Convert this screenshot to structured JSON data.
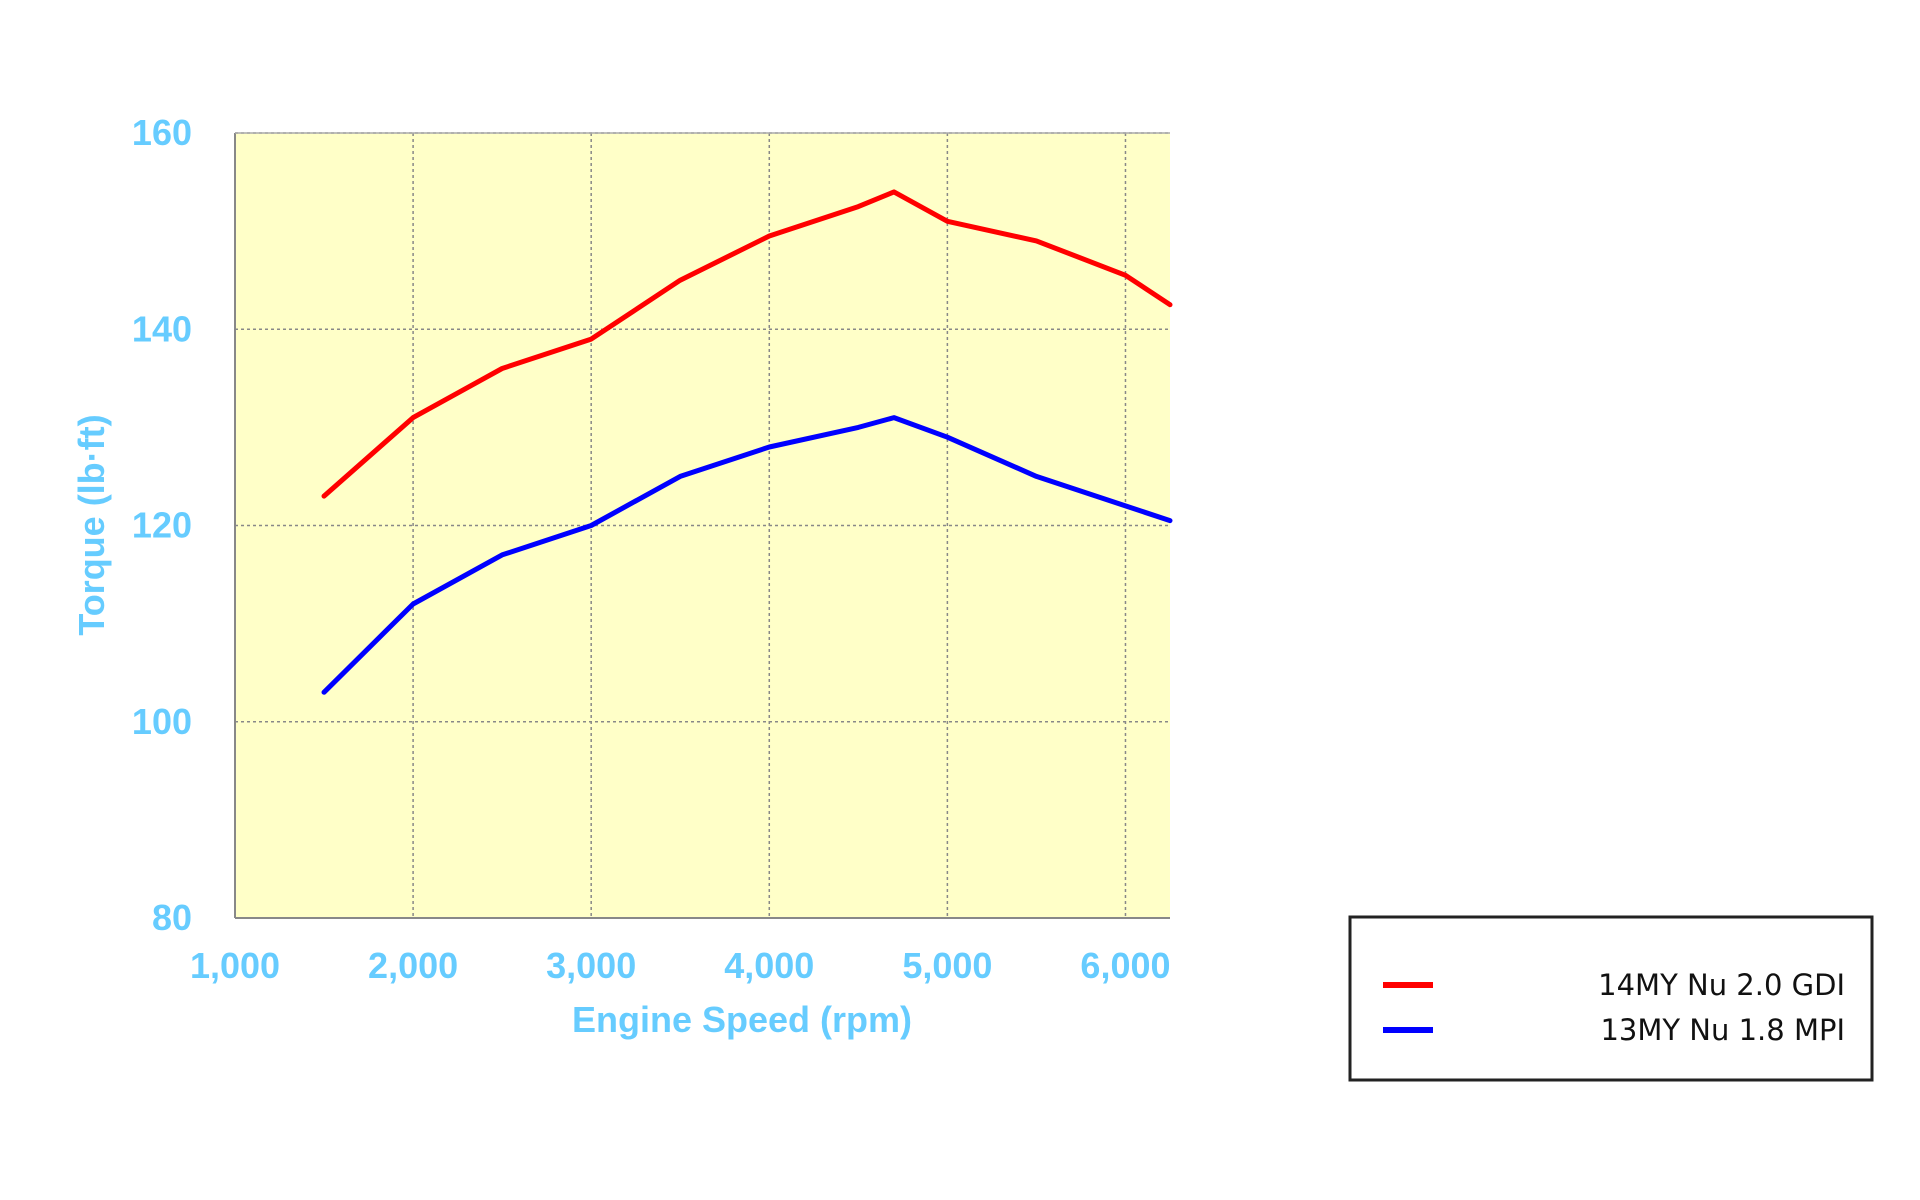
{
  "chart_data": {
    "type": "line",
    "title": "",
    "xlabel": "Engine Speed (rpm)",
    "ylabel": "Torque (lb·ft)",
    "xlim": [
      1000,
      6250
    ],
    "ylim": [
      80,
      160
    ],
    "x_ticks": [
      1000,
      2000,
      3000,
      4000,
      5000,
      6000
    ],
    "x_tick_labels": [
      "1,000",
      "2,000",
      "3,000",
      "4,000",
      "5,000",
      "6,000"
    ],
    "y_ticks": [
      80,
      100,
      120,
      140,
      160
    ],
    "y_tick_labels": [
      "80",
      "100",
      "120",
      "140",
      "160"
    ],
    "grid": true,
    "plot_background": "#ffffc8",
    "legend_position": "bottom-right",
    "series": [
      {
        "name": "14MY Nu 2.0 GDI",
        "color": "#ff0000",
        "x": [
          1500,
          2000,
          2500,
          3000,
          3500,
          4000,
          4500,
          4700,
          5000,
          5500,
          6000,
          6250
        ],
        "values": [
          123,
          131,
          136,
          139,
          145,
          149.5,
          152.5,
          154,
          151,
          149,
          145.5,
          142.5
        ]
      },
      {
        "name": "13MY Nu 1.8 MPI",
        "color": "#0000ff",
        "x": [
          1500,
          2000,
          2500,
          3000,
          3500,
          4000,
          4500,
          4700,
          5000,
          5500,
          6000,
          6250
        ],
        "values": [
          103,
          112,
          117,
          120,
          125,
          128,
          130,
          131,
          129,
          125,
          122,
          120.5
        ]
      }
    ]
  }
}
